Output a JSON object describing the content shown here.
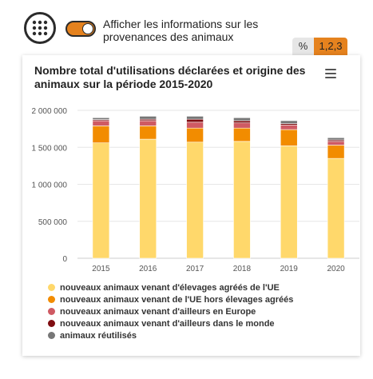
{
  "toggle": {
    "label": "Afficher les informations sur les provenances des animaux",
    "on": true
  },
  "unit_switch": {
    "percent_label": "%",
    "absolute_label": "1,2,3",
    "active": "absolute"
  },
  "colors": {
    "accent": "#e5821e",
    "series": [
      "#ffd86b",
      "#f28c00",
      "#cf5a63",
      "#7f0d11",
      "#777777"
    ]
  },
  "icons": {
    "grid": "grid-icon",
    "menu": "hamburger-menu-icon"
  },
  "chart_data": {
    "type": "bar",
    "stacked": true,
    "title": "Nombre total d'utilisations déclarées et origine des animaux sur la période 2015-2020",
    "categories": [
      "2015",
      "2016",
      "2017",
      "2018",
      "2019",
      "2020"
    ],
    "ylim": [
      0,
      2000000
    ],
    "yticks": [
      "0",
      "500 000",
      "1 000 000",
      "1 500 000",
      "2 000 000"
    ],
    "ytick_values": [
      0,
      500000,
      1000000,
      1500000,
      2000000
    ],
    "grid": true,
    "legend_position": "bottom",
    "series": [
      {
        "name": "nouveaux animaux venant d'élevages agréés de l'UE",
        "values": [
          1560000,
          1610000,
          1570000,
          1580000,
          1520000,
          1350000
        ]
      },
      {
        "name": "nouveaux animaux venant de l'UE hors élevages agréés",
        "values": [
          230000,
          180000,
          190000,
          180000,
          220000,
          180000
        ]
      },
      {
        "name": "nouveaux animaux venant d'ailleurs en Europe",
        "values": [
          70000,
          70000,
          80000,
          70000,
          60000,
          50000
        ]
      },
      {
        "name": "nouveaux animaux venant d'ailleurs dans le monde",
        "values": [
          15000,
          20000,
          40000,
          30000,
          20000,
          20000
        ]
      },
      {
        "name": "animaux réutilisés",
        "values": [
          25000,
          40000,
          40000,
          40000,
          40000,
          30000
        ]
      }
    ]
  }
}
